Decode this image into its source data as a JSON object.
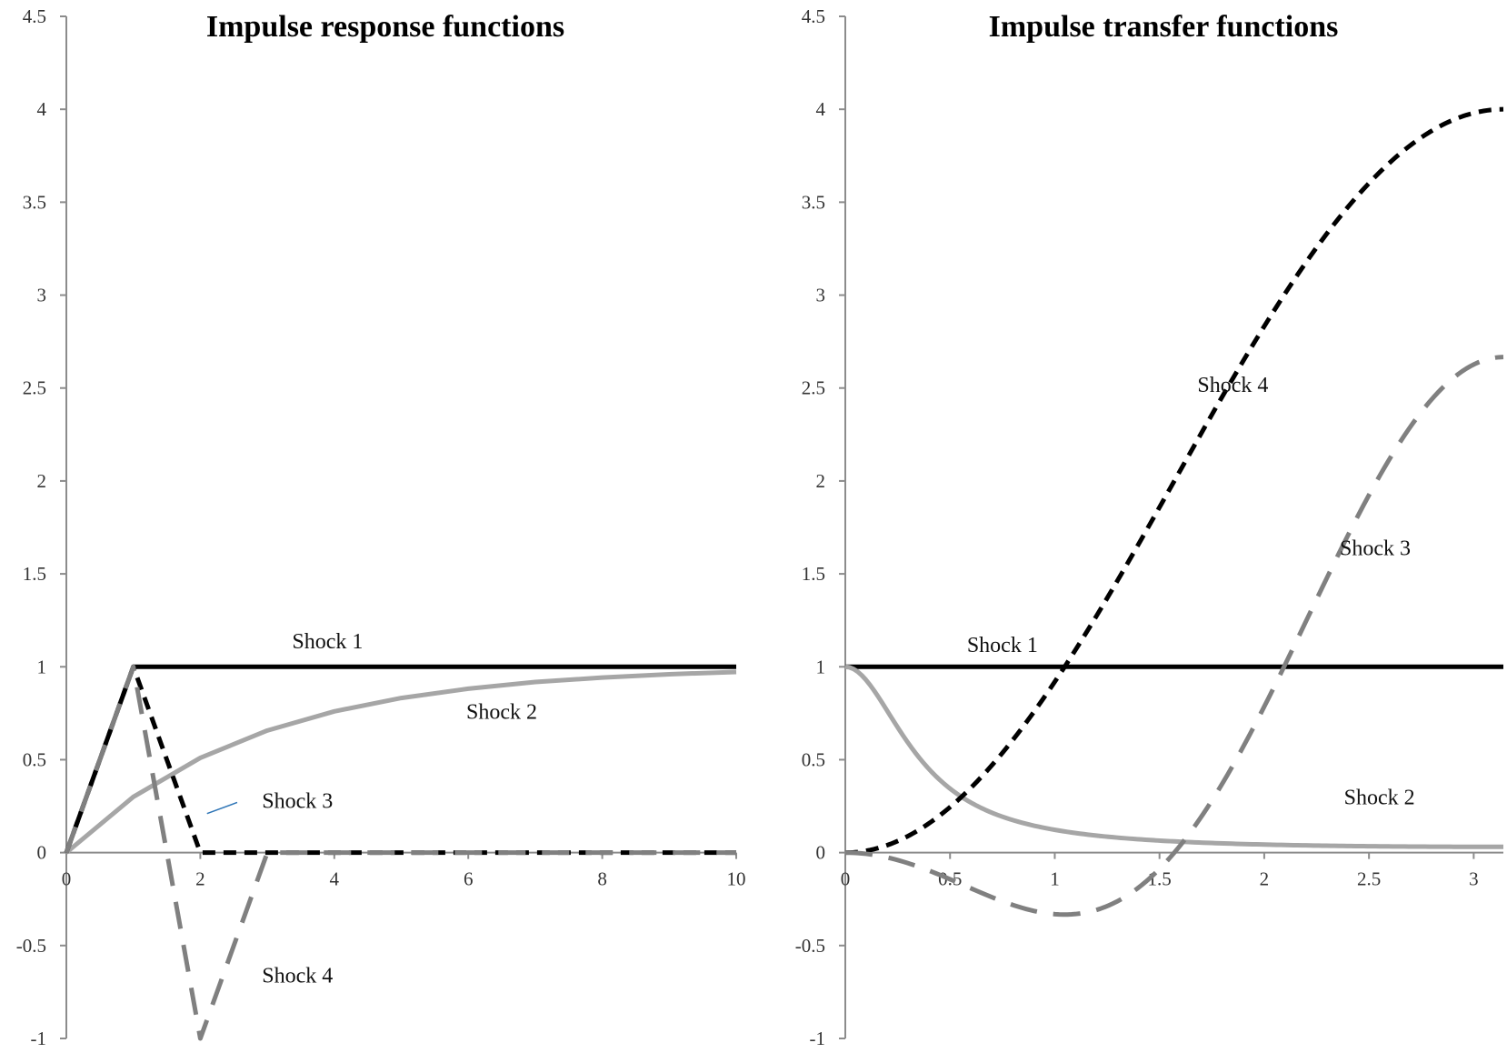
{
  "chart_data": [
    {
      "type": "line",
      "title": "Impulse response functions",
      "xlim": [
        0,
        10
      ],
      "ylim": [
        -1,
        4.5
      ],
      "x_ticks": [
        "0",
        "2",
        "4",
        "6",
        "8",
        "10"
      ],
      "y_ticks": [
        "-1",
        "-0.5",
        "0",
        "0.5",
        "1",
        "1.5",
        "2",
        "2.5",
        "3",
        "3.5",
        "4",
        "4.5"
      ],
      "series": [
        {
          "name": "Shock 1",
          "color": "#000000",
          "dash": "solid",
          "x": [
            0,
            1,
            2,
            3,
            4,
            5,
            6,
            7,
            8,
            9,
            10
          ],
          "y": [
            0,
            1,
            1,
            1,
            1,
            1,
            1,
            1,
            1,
            1,
            1
          ]
        },
        {
          "name": "Shock 2",
          "color": "#a6a6a6",
          "dash": "solid",
          "x": [
            0,
            1,
            2,
            3,
            4,
            5,
            6,
            7,
            8,
            9,
            10
          ],
          "y": [
            0,
            0.3,
            0.51,
            0.657,
            0.76,
            0.832,
            0.882,
            0.918,
            0.942,
            0.96,
            0.972
          ]
        },
        {
          "name": "Shock 3",
          "color": "#000000",
          "dash": "short",
          "x": [
            0,
            1,
            2,
            3,
            4,
            5,
            6,
            7,
            8,
            9,
            10
          ],
          "y": [
            0,
            1,
            0,
            0,
            0,
            0,
            0,
            0,
            0,
            0,
            0
          ]
        },
        {
          "name": "Shock 4",
          "color": "#808080",
          "dash": "long",
          "x": [
            0,
            1,
            2,
            3,
            4,
            5,
            6,
            7,
            8,
            9,
            10
          ],
          "y": [
            0,
            1,
            -1,
            0,
            0,
            0,
            0,
            0,
            0,
            0,
            0
          ]
        }
      ],
      "annotations": [
        {
          "text": "Shock 1",
          "x": 3.9,
          "y": 1.1
        },
        {
          "text": "Shock 2",
          "x": 6.5,
          "y": 0.72
        },
        {
          "text": "Shock 3",
          "x": 3.45,
          "y": 0.24
        },
        {
          "text": "Shock 4",
          "x": 3.45,
          "y": -0.7
        }
      ]
    },
    {
      "type": "line",
      "title": "Impulse transfer functions",
      "xlim": [
        0,
        3.14159
      ],
      "ylim": [
        -1,
        4.5
      ],
      "x_ticks": [
        "0",
        "0.5",
        "1",
        "1.5",
        "2",
        "2.5",
        "3"
      ],
      "y_ticks": [
        "-1",
        "-0.5",
        "0",
        "0.5",
        "1",
        "1.5",
        "2",
        "2.5",
        "3",
        "3.5",
        "4",
        "4.5"
      ],
      "series": [
        {
          "name": "Shock 1",
          "color": "#000000",
          "dash": "solid",
          "formula": "one"
        },
        {
          "name": "Shock 2",
          "color": "#a6a6a6",
          "dash": "solid",
          "formula": "ar",
          "params": {
            "phi": 0.7,
            "gain": 0.3
          }
        },
        {
          "name": "Shock 3",
          "color": "#000000",
          "dash": "short",
          "formula": "diff1"
        },
        {
          "name": "Shock 4",
          "color": "#808080",
          "dash": "long",
          "formula": "diff2"
        }
      ],
      "annotations": [
        {
          "text": "Shock 1",
          "x": 0.75,
          "y": 1.08
        },
        {
          "text": "Shock 4",
          "x": 1.85,
          "y": 2.48
        },
        {
          "text": "Shock 3",
          "x": 2.53,
          "y": 1.6
        },
        {
          "text": "Shock 2",
          "x": 2.55,
          "y": 0.26
        }
      ]
    }
  ]
}
